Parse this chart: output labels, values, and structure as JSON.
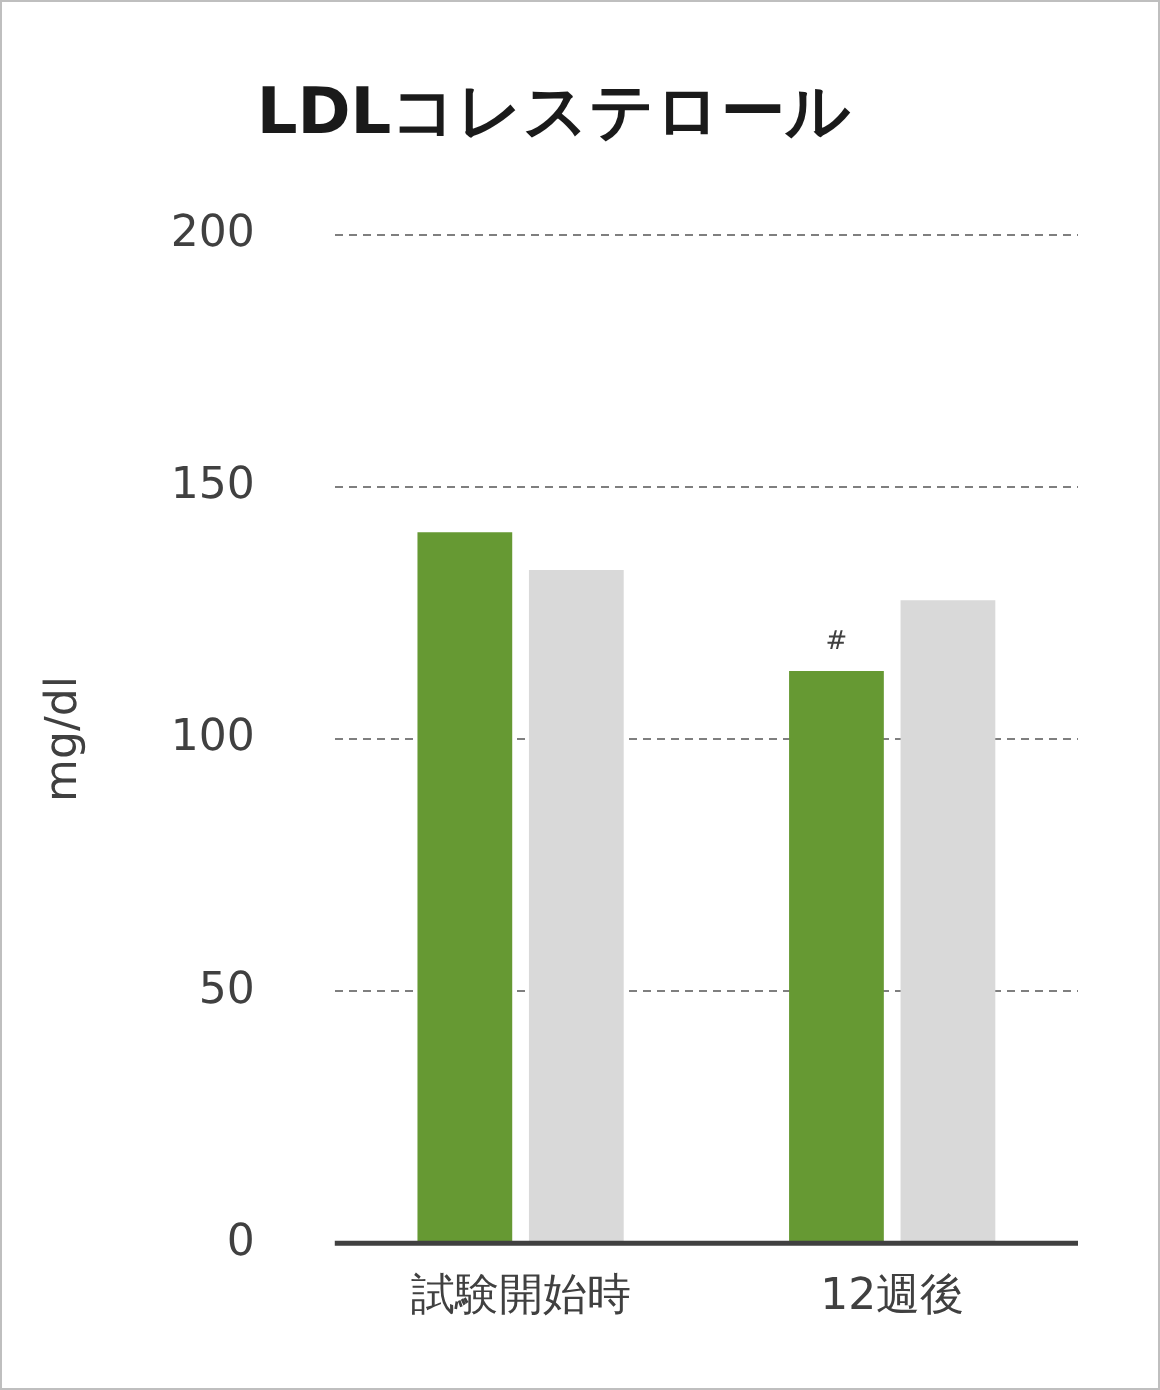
{
  "chart_data": {
    "type": "bar",
    "title": "LDLコレステロール",
    "ylabel": "mg/dl",
    "categories": [
      "試験開始時",
      "12週後"
    ],
    "series": [
      {
        "color": "#669933",
        "values": [
          141,
          113.5
        ]
      },
      {
        "color": "#d9d9d9",
        "values": [
          133.5,
          127.5
        ]
      }
    ],
    "ylim": [
      0,
      200
    ],
    "yticks": [
      0,
      50,
      100,
      150,
      200
    ],
    "grid": "y",
    "legend": false,
    "annotations": [
      {
        "text": "#",
        "x": "12週後",
        "y": 113.5
      }
    ]
  }
}
